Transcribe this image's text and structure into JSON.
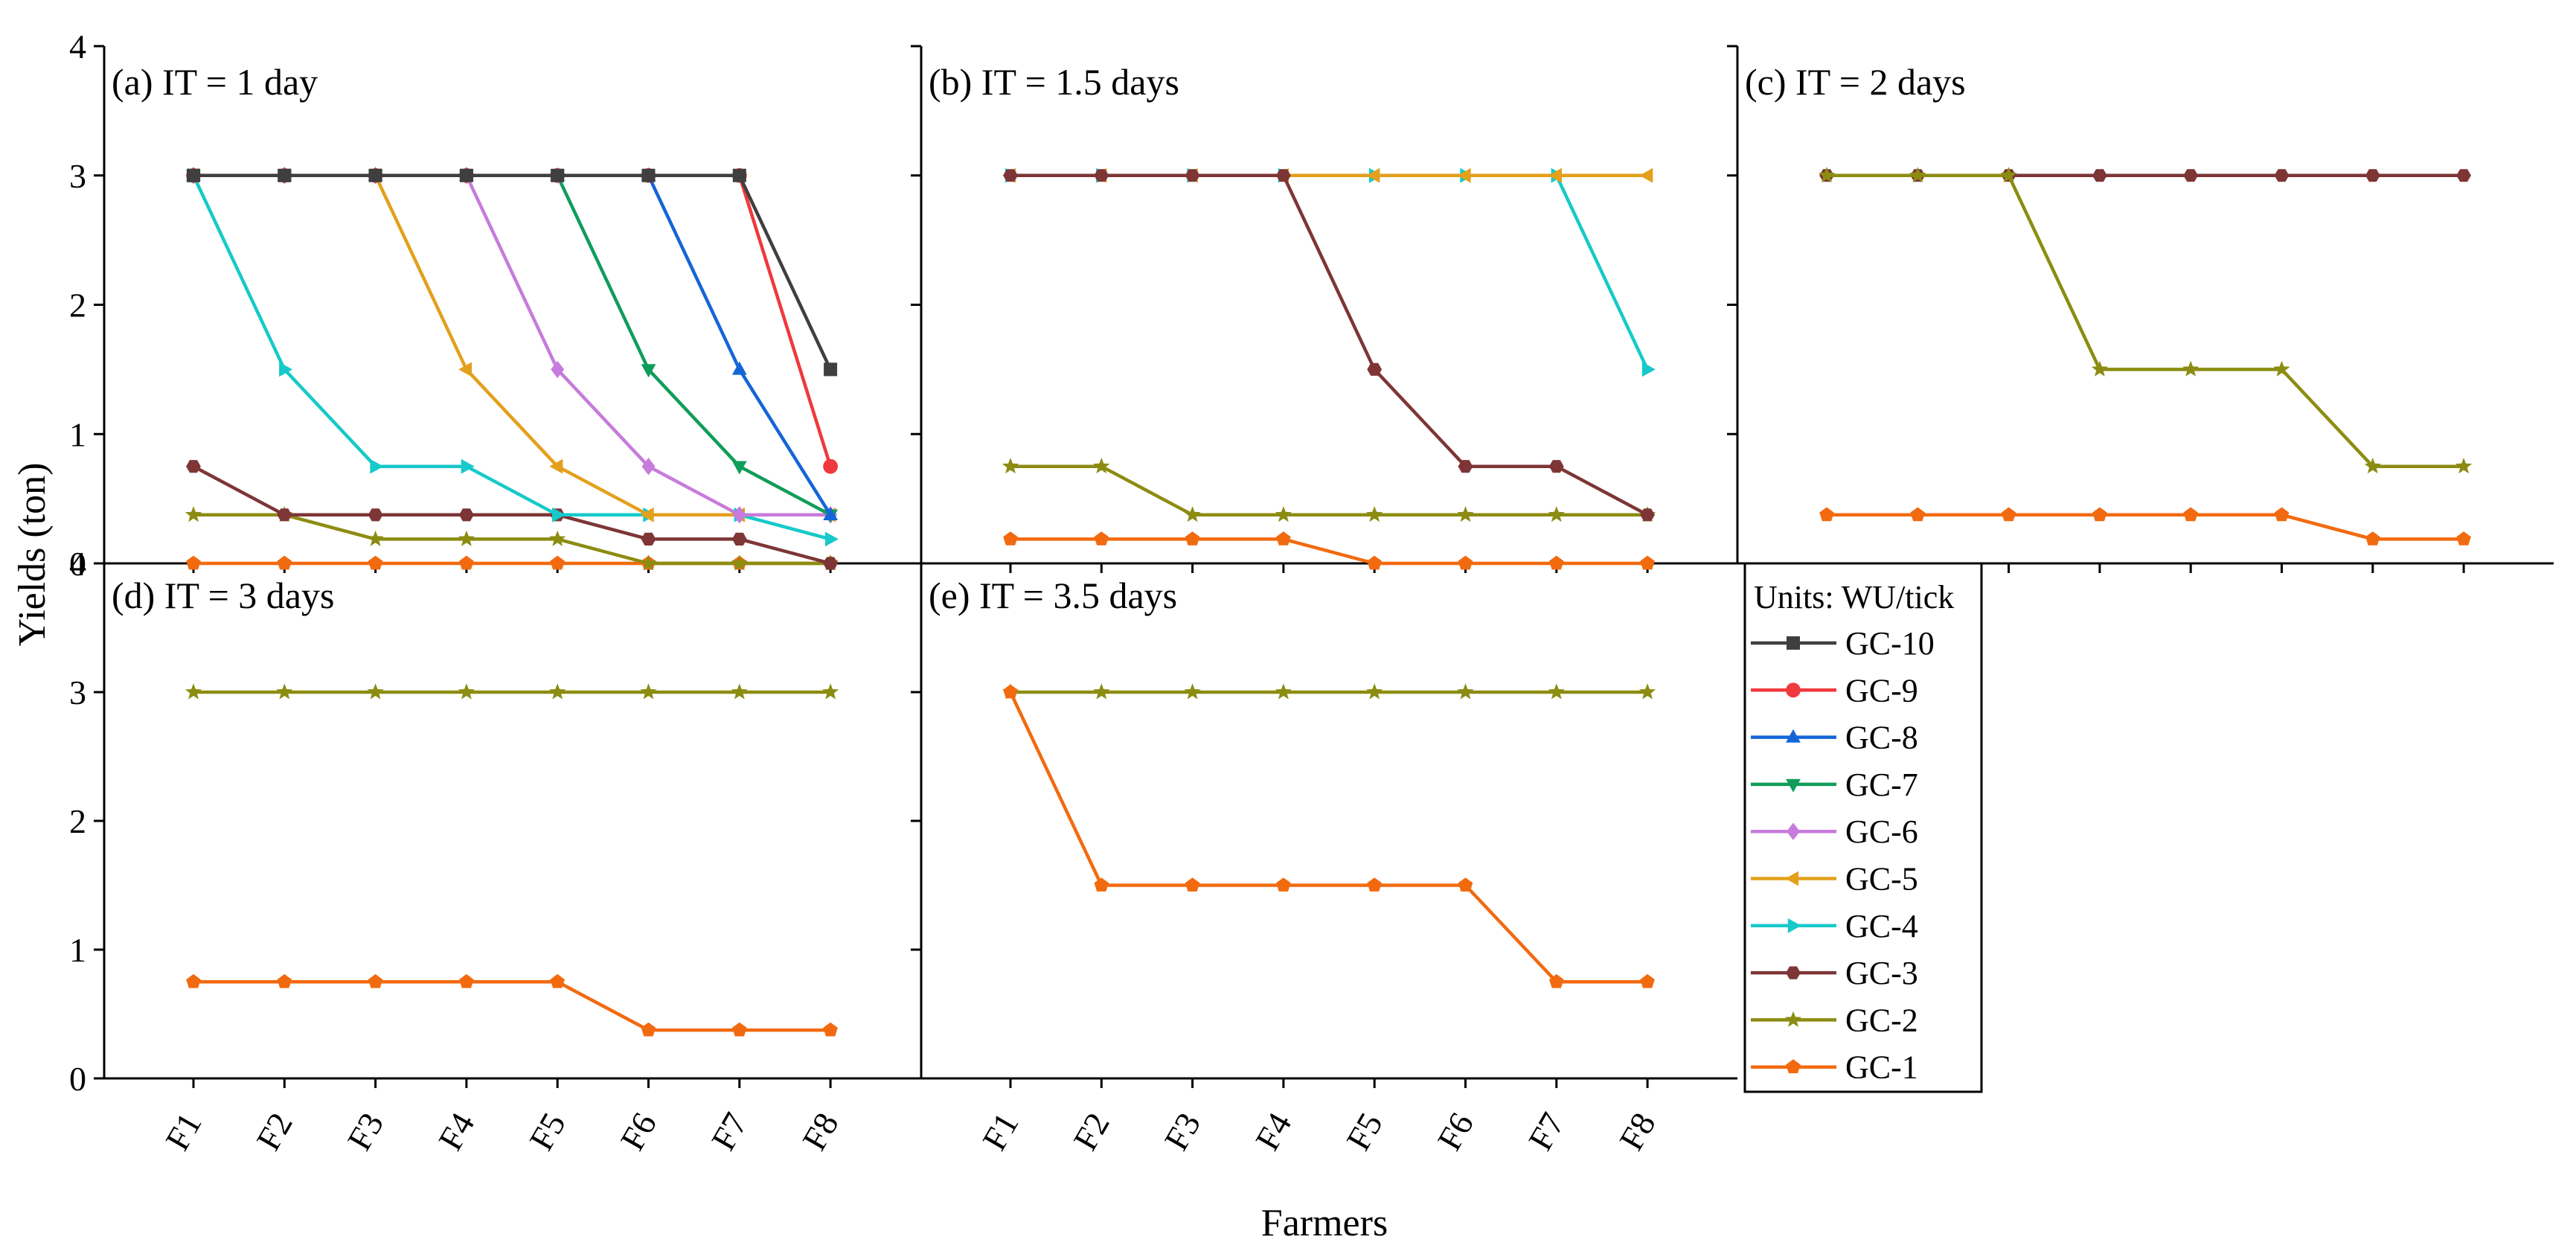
{
  "chart_data": {
    "type": "line",
    "xlabel": "Farmers",
    "ylabel": "Yields (ton)",
    "categories": [
      "F1",
      "F2",
      "F3",
      "F4",
      "F5",
      "F6",
      "F7",
      "F8"
    ],
    "ylim": [
      0,
      4
    ],
    "yticks": [
      "0",
      "1",
      "2",
      "3",
      "4"
    ],
    "legend": {
      "title": "Units: WU/tick",
      "entries": [
        {
          "name": "GC-10",
          "color": "#3f3f3f",
          "marker": "square"
        },
        {
          "name": "GC-9",
          "color": "#f0393c",
          "marker": "circle"
        },
        {
          "name": "GC-8",
          "color": "#1565d8",
          "marker": "triangle-up"
        },
        {
          "name": "GC-7",
          "color": "#109d5a",
          "marker": "triangle-down"
        },
        {
          "name": "GC-6",
          "color": "#c77bdc",
          "marker": "diamond"
        },
        {
          "name": "GC-5",
          "color": "#e3a01c",
          "marker": "triangle-left"
        },
        {
          "name": "GC-4",
          "color": "#17c9c9",
          "marker": "triangle-right"
        },
        {
          "name": "GC-3",
          "color": "#7e3536",
          "marker": "hexagon"
        },
        {
          "name": "GC-2",
          "color": "#8c8c12",
          "marker": "star"
        },
        {
          "name": "GC-1",
          "color": "#f26a10",
          "marker": "pentagon"
        }
      ]
    },
    "panels": [
      {
        "title": "(a) IT = 1 day",
        "series": [
          {
            "name": "GC-1",
            "values": [
              0,
              0,
              0,
              0,
              0,
              0,
              0,
              0
            ]
          },
          {
            "name": "GC-2",
            "values": [
              0.375,
              0.375,
              0.1875,
              0.1875,
              0.1875,
              0,
              0,
              0
            ]
          },
          {
            "name": "GC-3",
            "values": [
              0.75,
              0.375,
              0.375,
              0.375,
              0.375,
              0.1875,
              0.1875,
              0
            ]
          },
          {
            "name": "GC-4",
            "values": [
              3,
              1.5,
              0.75,
              0.75,
              0.375,
              0.375,
              0.375,
              0.1875
            ]
          },
          {
            "name": "GC-5",
            "values": [
              3,
              3,
              3,
              1.5,
              0.75,
              0.375,
              0.375,
              0.375
            ]
          },
          {
            "name": "GC-6",
            "values": [
              3,
              3,
              3,
              3,
              1.5,
              0.75,
              0.375,
              0.375
            ]
          },
          {
            "name": "GC-7",
            "values": [
              3,
              3,
              3,
              3,
              3,
              1.5,
              0.75,
              0.375
            ]
          },
          {
            "name": "GC-8",
            "values": [
              3,
              3,
              3,
              3,
              3,
              3,
              1.5,
              0.375
            ]
          },
          {
            "name": "GC-9",
            "values": [
              3,
              3,
              3,
              3,
              3,
              3,
              3,
              0.75
            ]
          },
          {
            "name": "GC-10",
            "values": [
              3,
              3,
              3,
              3,
              3,
              3,
              3,
              1.5
            ]
          }
        ]
      },
      {
        "title": "(b) IT = 1.5 days",
        "series": [
          {
            "name": "GC-1",
            "values": [
              0.1875,
              0.1875,
              0.1875,
              0.1875,
              0,
              0,
              0,
              0
            ]
          },
          {
            "name": "GC-2",
            "values": [
              0.75,
              0.75,
              0.375,
              0.375,
              0.375,
              0.375,
              0.375,
              0.375
            ]
          },
          {
            "name": "GC-4",
            "values": [
              3,
              3,
              3,
              3,
              3,
              3,
              3,
              1.5
            ]
          },
          {
            "name": "GC-5",
            "values": [
              3,
              3,
              3,
              3,
              3,
              3,
              3,
              3
            ]
          },
          {
            "name": "GC-3",
            "values": [
              3,
              3,
              3,
              3,
              1.5,
              0.75,
              0.75,
              0.375
            ]
          }
        ]
      },
      {
        "title": "(c) IT = 2 days",
        "series": [
          {
            "name": "GC-1",
            "values": [
              0.375,
              0.375,
              0.375,
              0.375,
              0.375,
              0.375,
              0.1875,
              0.1875
            ]
          },
          {
            "name": "GC-3",
            "values": [
              3,
              3,
              3,
              3,
              3,
              3,
              3,
              3
            ]
          },
          {
            "name": "GC-2",
            "values": [
              3,
              3,
              3,
              1.5,
              1.5,
              1.5,
              0.75,
              0.75
            ]
          }
        ]
      },
      {
        "title": "(d) IT = 3 days",
        "series": [
          {
            "name": "GC-1",
            "values": [
              0.75,
              0.75,
              0.75,
              0.75,
              0.75,
              0.375,
              0.375,
              0.375
            ]
          },
          {
            "name": "GC-2",
            "values": [
              3,
              3,
              3,
              3,
              3,
              3,
              3,
              3
            ]
          }
        ]
      },
      {
        "title": "(e) IT = 3.5 days",
        "series": [
          {
            "name": "GC-2",
            "values": [
              3,
              3,
              3,
              3,
              3,
              3,
              3,
              3
            ]
          },
          {
            "name": "GC-1",
            "values": [
              3,
              1.5,
              1.5,
              1.5,
              1.5,
              1.5,
              0.75,
              0.75
            ]
          }
        ]
      }
    ]
  }
}
